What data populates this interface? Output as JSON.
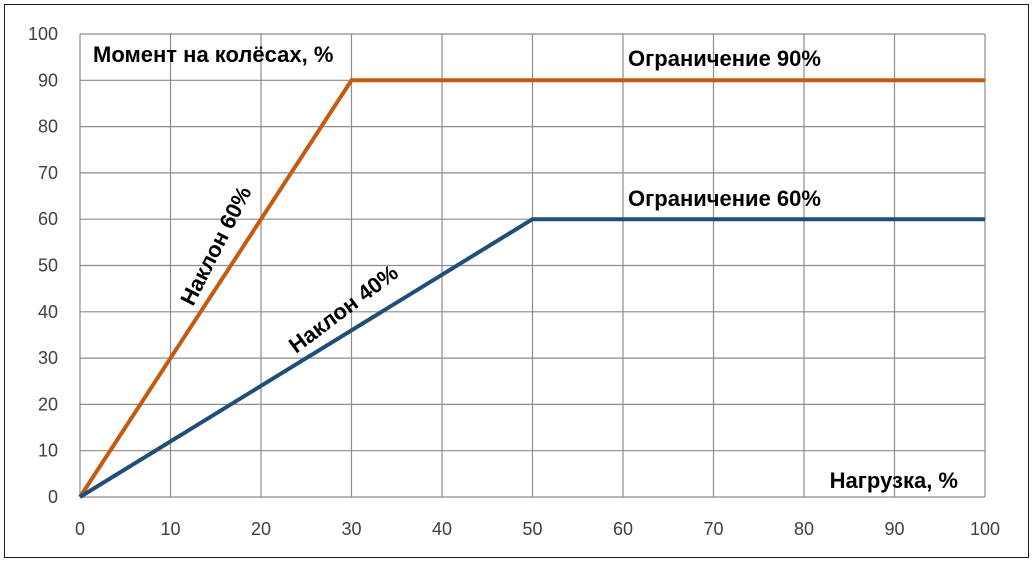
{
  "chart_data": {
    "type": "line",
    "title": "",
    "ylabel": "Момент на колёсах, %",
    "xlabel": "Нагрузка, %",
    "xlim": [
      0,
      100
    ],
    "ylim": [
      0,
      100
    ],
    "xticks": [
      0,
      10,
      20,
      30,
      40,
      50,
      60,
      70,
      80,
      90,
      100
    ],
    "yticks": [
      0,
      10,
      20,
      30,
      40,
      50,
      60,
      70,
      80,
      90,
      100
    ],
    "grid": true,
    "legend": "none",
    "series": [
      {
        "color": "#C55A11",
        "x": [
          0,
          30,
          100
        ],
        "y": [
          0,
          90,
          90
        ]
      },
      {
        "color": "#1F4E79",
        "x": [
          0,
          50,
          100
        ],
        "y": [
          0,
          60,
          60
        ]
      }
    ],
    "annotations": [
      {
        "text": "Ограничение 90%"
      },
      {
        "text": "Ограничение 60%"
      },
      {
        "text": "Наклон 60%"
      },
      {
        "text": "Наклон 40%"
      }
    ]
  }
}
